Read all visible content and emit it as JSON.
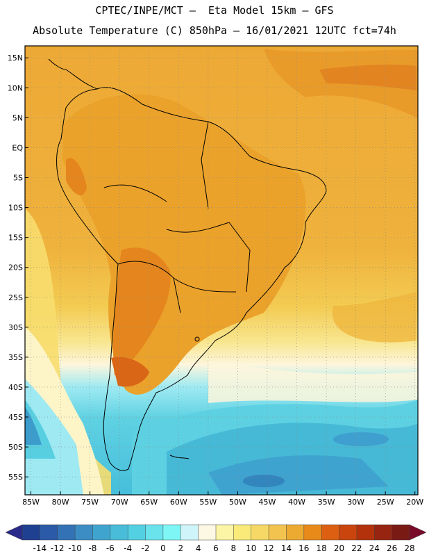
{
  "header": {
    "title_line1": "CPTEC/INPE/MCT –  Eta Model 15km – GFS",
    "title_line2": "Absolute Temperature (C) 850hPa – 16/01/2021 12UTC fct=74h"
  },
  "map": {
    "lat_ticks": [
      "15N",
      "10N",
      "5N",
      "EQ",
      "5S",
      "10S",
      "15S",
      "20S",
      "25S",
      "30S",
      "35S",
      "40S",
      "45S",
      "50S",
      "55S"
    ],
    "lat_values": [
      15,
      10,
      5,
      0,
      -5,
      -10,
      -15,
      -20,
      -25,
      -30,
      -35,
      -40,
      -45,
      -50,
      -55
    ],
    "lon_ticks": [
      "85W",
      "80W",
      "75W",
      "70W",
      "65W",
      "60W",
      "55W",
      "50W",
      "45W",
      "40W",
      "35W",
      "30W",
      "25W",
      "20W"
    ],
    "lon_values": [
      -85,
      -80,
      -75,
      -70,
      -65,
      -60,
      -55,
      -50,
      -45,
      -40,
      -35,
      -30,
      -25,
      -20
    ],
    "lat_range": [
      -58,
      17
    ],
    "lon_range": [
      -86,
      -19.5
    ],
    "grid": true
  },
  "colorbar": {
    "labels": [
      "-14",
      "-12",
      "-10",
      "-8",
      "-6",
      "-4",
      "-2",
      "0",
      "2",
      "4",
      "6",
      "8",
      "10",
      "12",
      "14",
      "16",
      "18",
      "20",
      "22",
      "24",
      "26",
      "28"
    ],
    "colors": [
      "#1f3f91",
      "#2a5aa8",
      "#3373b5",
      "#3b8dc4",
      "#3fa5cf",
      "#48bcd9",
      "#54d0e3",
      "#6ae3ec",
      "#7ef6f6",
      "#cff5fb",
      "#fdf8e3",
      "#fbf5a5",
      "#f9ea7a",
      "#f5d866",
      "#f2c34f",
      "#edaa32",
      "#e88a1a",
      "#dd6012",
      "#c9450d",
      "#b3320c",
      "#962410",
      "#7a1a14"
    ]
  }
}
